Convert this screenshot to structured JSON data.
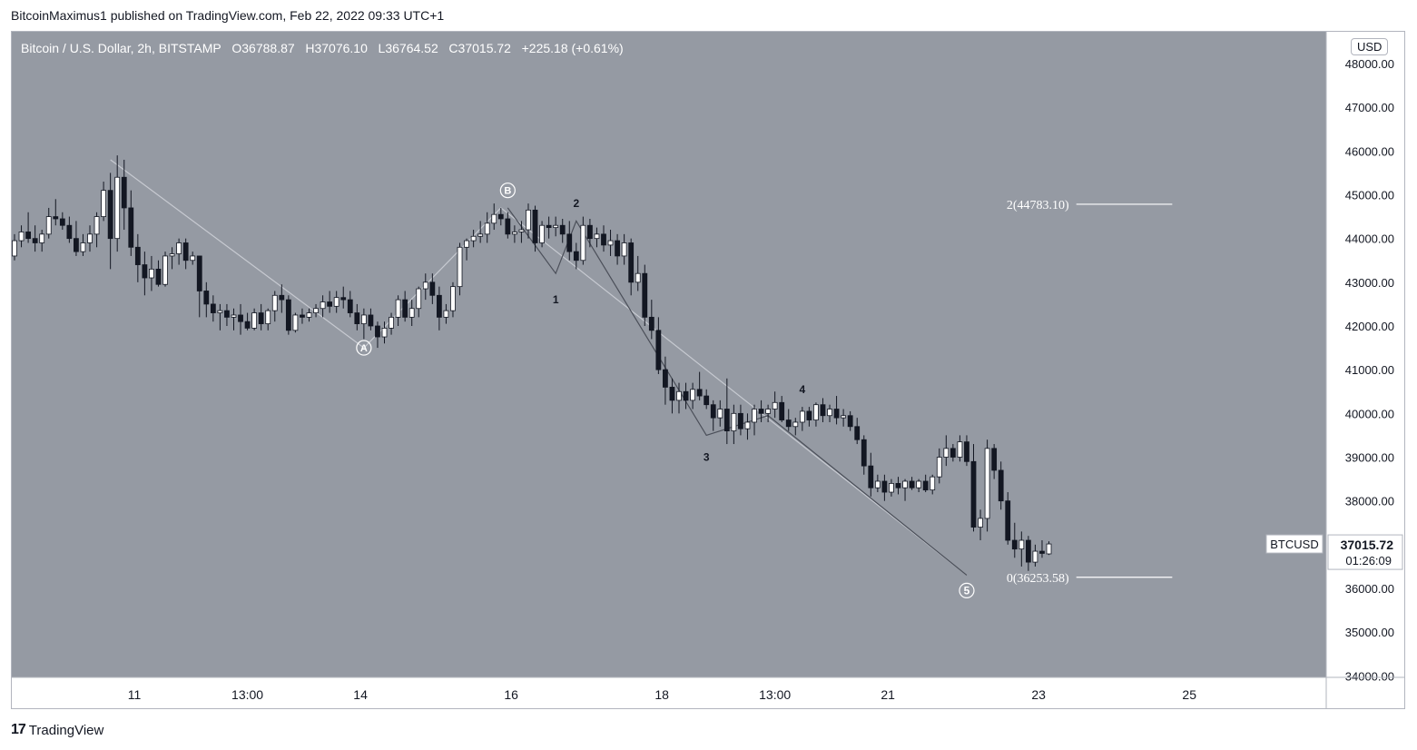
{
  "attribution": "BitcoinMaximus1 published on TradingView.com, Feb 22, 2022 09:33 UTC+1",
  "legend": {
    "symbol": "Bitcoin / U.S. Dollar, 2h, BITSTAMP",
    "o_label": "O",
    "o_value": "36788.87",
    "h_label": "H",
    "h_value": "37076.10",
    "l_label": "L",
    "l_value": "36764.52",
    "c_label": "C",
    "c_value": "37015.72",
    "change": "+225.18 (+0.61%)"
  },
  "currency_badge": "USD",
  "footer_brand": "TradingView",
  "price_tag": {
    "symbol": "BTCUSD",
    "price": "37015.72",
    "countdown": "01:26:09"
  },
  "colors": {
    "plot_bg": "#959aa3",
    "bull_body": "#ffffff",
    "bear_body": "#131722",
    "wave_line": "#c7cad1",
    "wave_line_dark": "#4b4f59",
    "fib_line": "#ffffff"
  },
  "chart_data": {
    "type": "candlestick",
    "title": "Bitcoin / U.S. Dollar, 2h, BITSTAMP",
    "y_axis": {
      "ylim": [
        34000,
        48400
      ],
      "ticks": [
        34000,
        35000,
        36000,
        37000,
        38000,
        39000,
        40000,
        41000,
        42000,
        43000,
        44000,
        45000,
        46000,
        47000,
        48000
      ],
      "tick_labels": [
        "34000.00",
        "35000.00",
        "36000.00",
        "37000.00",
        "38000.00",
        "39000.00",
        "40000.00",
        "41000.00",
        "42000.00",
        "43000.00",
        "44000.00",
        "45000.00",
        "46000.00",
        "47000.00",
        "48000.00"
      ]
    },
    "x_axis": {
      "bar_range": [
        0,
        183
      ],
      "ticks": [
        {
          "bar": 17.5,
          "label": "11"
        },
        {
          "bar": 34,
          "label": "13:00"
        },
        {
          "bar": 50.5,
          "label": "14"
        },
        {
          "bar": 72.5,
          "label": "16"
        },
        {
          "bar": 94.5,
          "label": "18"
        },
        {
          "bar": 111,
          "label": "13:00"
        },
        {
          "bar": 127.5,
          "label": "21"
        },
        {
          "bar": 149.5,
          "label": "23"
        },
        {
          "bar": 171.5,
          "label": "25"
        }
      ]
    },
    "candles": [
      [
        43600,
        44100,
        43500,
        43950
      ],
      [
        43950,
        44300,
        43800,
        44150
      ],
      [
        44150,
        44600,
        43900,
        44000
      ],
      [
        44000,
        44300,
        43700,
        43900
      ],
      [
        43900,
        44200,
        43700,
        44100
      ],
      [
        44100,
        44700,
        44000,
        44500
      ],
      [
        44500,
        44900,
        44300,
        44450
      ],
      [
        44450,
        44600,
        44200,
        44300
      ],
      [
        44300,
        44500,
        43900,
        44000
      ],
      [
        44000,
        44400,
        43600,
        43700
      ],
      [
        43700,
        44100,
        43600,
        43900
      ],
      [
        43900,
        44300,
        43700,
        44100
      ],
      [
        44100,
        44600,
        43800,
        44500
      ],
      [
        44500,
        45300,
        44400,
        45100
      ],
      [
        45100,
        45500,
        43300,
        44000
      ],
      [
        44000,
        45900,
        43700,
        45400
      ],
      [
        45400,
        45800,
        44200,
        44700
      ],
      [
        44700,
        45100,
        43600,
        43800
      ],
      [
        43800,
        44100,
        43000,
        43400
      ],
      [
        43400,
        43700,
        42700,
        43100
      ],
      [
        43100,
        43600,
        42800,
        43300
      ],
      [
        43300,
        43500,
        42900,
        42950
      ],
      [
        42950,
        43700,
        42900,
        43600
      ],
      [
        43600,
        43800,
        43300,
        43650
      ],
      [
        43650,
        44000,
        43400,
        43900
      ],
      [
        43900,
        44000,
        43300,
        43500
      ],
      [
        43500,
        43700,
        43400,
        43600
      ],
      [
        43600,
        43600,
        42200,
        42800
      ],
      [
        42800,
        43000,
        42200,
        42500
      ],
      [
        42500,
        42700,
        42100,
        42300
      ],
      [
        42300,
        42500,
        41900,
        42350
      ],
      [
        42350,
        42500,
        42000,
        42200
      ],
      [
        42200,
        42400,
        41900,
        42250
      ],
      [
        42250,
        42500,
        41800,
        42100
      ],
      [
        42100,
        42300,
        41900,
        41950
      ],
      [
        41950,
        42400,
        41900,
        42300
      ],
      [
        42300,
        42500,
        41900,
        42050
      ],
      [
        42050,
        42400,
        41900,
        42350
      ],
      [
        42350,
        42800,
        42100,
        42700
      ],
      [
        42700,
        42950,
        42300,
        42600
      ],
      [
        42600,
        42700,
        41800,
        41900
      ],
      [
        41900,
        42300,
        41850,
        42250
      ],
      [
        42250,
        42400,
        42050,
        42200
      ],
      [
        42200,
        42400,
        42100,
        42300
      ],
      [
        42300,
        42500,
        42200,
        42400
      ],
      [
        42400,
        42700,
        42200,
        42550
      ],
      [
        42550,
        42800,
        42300,
        42450
      ],
      [
        42450,
        42800,
        42300,
        42650
      ],
      [
        42650,
        42900,
        42400,
        42600
      ],
      [
        42600,
        42800,
        42200,
        42300
      ],
      [
        42300,
        42500,
        41900,
        42050
      ],
      [
        42050,
        42400,
        41700,
        42250
      ],
      [
        42250,
        42400,
        41900,
        42000
      ],
      [
        42000,
        42100,
        41500,
        41750
      ],
      [
        41750,
        42100,
        41600,
        41950
      ],
      [
        41950,
        42300,
        41800,
        42200
      ],
      [
        42200,
        42700,
        42000,
        42600
      ],
      [
        42600,
        42800,
        42100,
        42200
      ],
      [
        42200,
        42600,
        42000,
        42400
      ],
      [
        42400,
        42900,
        42200,
        42850
      ],
      [
        42850,
        43200,
        42600,
        43000
      ],
      [
        43000,
        43200,
        42500,
        42700
      ],
      [
        42700,
        42900,
        41900,
        42200
      ],
      [
        42200,
        42500,
        42050,
        42350
      ],
      [
        42350,
        43000,
        42200,
        42900
      ],
      [
        42900,
        43900,
        42700,
        43800
      ],
      [
        43800,
        44000,
        43500,
        43950
      ],
      [
        43950,
        44200,
        43800,
        44050
      ],
      [
        44050,
        44400,
        43900,
        44100
      ],
      [
        44100,
        44600,
        43900,
        44350
      ],
      [
        44350,
        44800,
        44200,
        44550
      ],
      [
        44550,
        44700,
        44300,
        44450
      ],
      [
        44450,
        44600,
        44000,
        44100
      ],
      [
        44100,
        44300,
        43900,
        44150
      ],
      [
        44150,
        44400,
        43900,
        44200
      ],
      [
        44200,
        44800,
        44000,
        44650
      ],
      [
        44650,
        44750,
        43700,
        43900
      ],
      [
        43900,
        44400,
        43800,
        44300
      ],
      [
        44300,
        44500,
        44000,
        44250
      ],
      [
        44250,
        44500,
        44050,
        44300
      ],
      [
        44300,
        44450,
        43900,
        44100
      ],
      [
        44100,
        44400,
        43500,
        43700
      ],
      [
        43700,
        43900,
        43300,
        43500
      ],
      [
        43500,
        44500,
        43400,
        44300
      ],
      [
        44300,
        44450,
        43800,
        44000
      ],
      [
        44000,
        44250,
        43800,
        44100
      ],
      [
        44100,
        44300,
        43700,
        43850
      ],
      [
        43850,
        44200,
        43600,
        43950
      ],
      [
        43950,
        44100,
        43400,
        43600
      ],
      [
        43600,
        44100,
        43400,
        43900
      ],
      [
        43900,
        44000,
        42700,
        43000
      ],
      [
        43000,
        43600,
        42800,
        43200
      ],
      [
        43200,
        43400,
        42000,
        42200
      ],
      [
        42200,
        42600,
        41700,
        41900
      ],
      [
        41900,
        42200,
        40900,
        41000
      ],
      [
        41000,
        41300,
        40200,
        40600
      ],
      [
        40600,
        40800,
        40000,
        40300
      ],
      [
        40300,
        40700,
        40000,
        40500
      ],
      [
        40500,
        40700,
        40100,
        40300
      ],
      [
        40300,
        40700,
        40100,
        40550
      ],
      [
        40550,
        40950,
        40300,
        40400
      ],
      [
        40400,
        40550,
        40100,
        40200
      ],
      [
        40200,
        40300,
        39600,
        39900
      ],
      [
        39900,
        40300,
        39700,
        40100
      ],
      [
        40100,
        40800,
        39300,
        39600
      ],
      [
        39600,
        40200,
        39300,
        40000
      ],
      [
        40000,
        40200,
        39500,
        39650
      ],
      [
        39650,
        40000,
        39400,
        39800
      ],
      [
        39800,
        40200,
        39500,
        40100
      ],
      [
        40100,
        40300,
        39800,
        40000
      ],
      [
        40000,
        40200,
        39800,
        40100
      ],
      [
        40100,
        40500,
        39900,
        40250
      ],
      [
        40250,
        40400,
        39800,
        39850
      ],
      [
        39850,
        40100,
        39600,
        39700
      ],
      [
        39700,
        39900,
        39500,
        39800
      ],
      [
        39800,
        40150,
        39600,
        40050
      ],
      [
        40050,
        40150,
        39700,
        39850
      ],
      [
        39850,
        40250,
        39700,
        40200
      ],
      [
        40200,
        40350,
        39800,
        39950
      ],
      [
        39950,
        40200,
        39800,
        40100
      ],
      [
        40100,
        40400,
        39750,
        39900
      ],
      [
        39900,
        40100,
        39700,
        39950
      ],
      [
        39950,
        40050,
        39600,
        39700
      ],
      [
        39700,
        39900,
        39300,
        39400
      ],
      [
        39400,
        39500,
        38600,
        38800
      ],
      [
        38800,
        39100,
        38100,
        38300
      ],
      [
        38300,
        38600,
        38200,
        38450
      ],
      [
        38450,
        38600,
        38000,
        38200
      ],
      [
        38200,
        38500,
        38100,
        38400
      ],
      [
        38400,
        38550,
        38150,
        38300
      ],
      [
        38300,
        38500,
        38000,
        38450
      ],
      [
        38450,
        38550,
        38250,
        38300
      ],
      [
        38300,
        38500,
        38200,
        38450
      ],
      [
        38450,
        38600,
        38200,
        38250
      ],
      [
        38250,
        38600,
        38150,
        38550
      ],
      [
        38550,
        39200,
        38400,
        39000
      ],
      [
        39000,
        39500,
        38800,
        39200
      ],
      [
        39200,
        39300,
        38900,
        39000
      ],
      [
        39000,
        39500,
        38900,
        39350
      ],
      [
        39350,
        39500,
        38800,
        38900
      ],
      [
        38900,
        39300,
        37300,
        37400
      ],
      [
        37400,
        37800,
        37100,
        37600
      ],
      [
        37600,
        39400,
        37300,
        39200
      ],
      [
        39200,
        39300,
        38500,
        38700
      ],
      [
        38700,
        38900,
        37800,
        38000
      ],
      [
        38000,
        38200,
        37000,
        37100
      ],
      [
        37100,
        37500,
        36700,
        36900
      ],
      [
        36900,
        37300,
        36500,
        37100
      ],
      [
        37100,
        37200,
        36400,
        36600
      ],
      [
        36600,
        37000,
        36500,
        36850
      ],
      [
        36850,
        37100,
        36700,
        36800
      ],
      [
        36788.87,
        37076.1,
        36764.52,
        37015.72
      ]
    ],
    "annotations": [
      {
        "label": "Ⓐ",
        "bar": 51,
        "price": 41500
      },
      {
        "label": "Ⓑ",
        "bar": 72,
        "price": 45100
      },
      {
        "label": "1",
        "bar": 79,
        "price": 42600
      },
      {
        "label": "2",
        "bar": 82,
        "price": 44800
      },
      {
        "label": "3",
        "bar": 101,
        "price": 39000
      },
      {
        "label": "4",
        "bar": 115,
        "price": 40550
      },
      {
        "label": "5",
        "bar": 139,
        "price": 35950
      }
    ],
    "wave_paths": [
      {
        "points": [
          [
            14,
            45800
          ],
          [
            51,
            41500
          ],
          [
            71,
            44700
          ],
          [
            139,
            36300
          ]
        ],
        "style": "light"
      },
      {
        "points": [
          [
            72,
            44700
          ],
          [
            79,
            43200
          ],
          [
            82,
            44400
          ],
          [
            101,
            39500
          ],
          [
            110,
            39950
          ],
          [
            139,
            36300
          ]
        ],
        "style": "dark"
      }
    ],
    "fib_levels": [
      {
        "label": "2(44783.10)",
        "price": 44783.1
      },
      {
        "label": "0(36253.58)",
        "price": 36253.58
      }
    ],
    "fib_bar_range": [
      155,
      169
    ]
  }
}
